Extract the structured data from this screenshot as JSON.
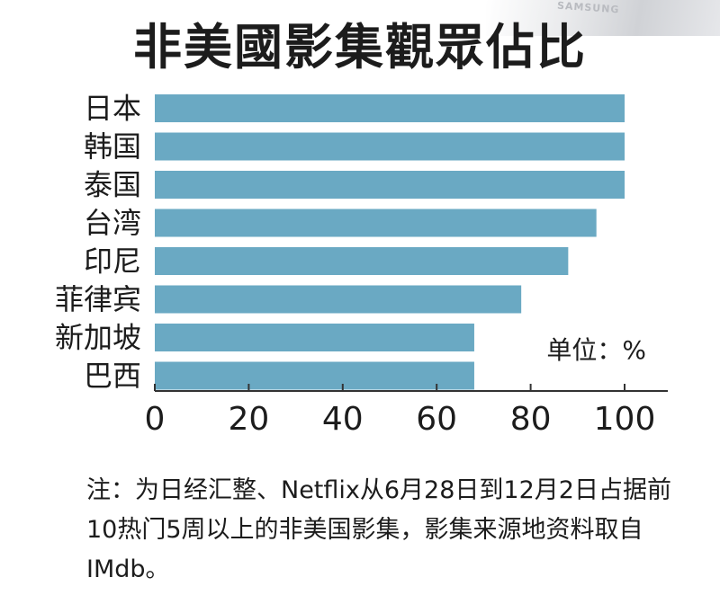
{
  "title": "非美國影集觀眾佔比",
  "note": "注：为日经汇整、Netflix从6月28日到12月2日占据前10热门5周以上的非美国影集，影集来源地资料取自IMdb。",
  "decor_text": "SAMSUNG",
  "chart_data": {
    "type": "bar",
    "orientation": "horizontal",
    "title": "非美國影集觀眾佔比",
    "unit_label": "单位：%",
    "categories": [
      "日本",
      "韩国",
      "泰国",
      "台湾",
      "印尼",
      "菲律宾",
      "新加坡",
      "巴西"
    ],
    "values": [
      100,
      100,
      100,
      94,
      88,
      78,
      68,
      68
    ],
    "xlim": [
      0,
      110
    ],
    "xticks": [
      "0",
      "20",
      "40",
      "60",
      "80",
      "100"
    ],
    "grid": false,
    "bar_color": "#6aa9c3"
  }
}
